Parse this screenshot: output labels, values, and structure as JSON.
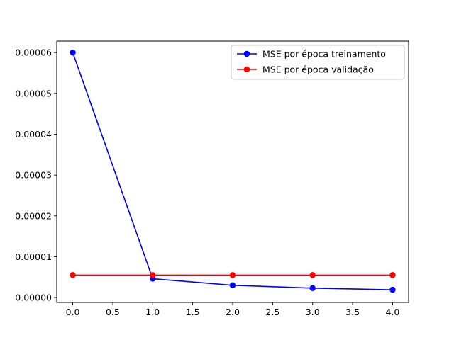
{
  "chart_data": {
    "type": "line",
    "title": "",
    "xlabel": "",
    "ylabel": "",
    "xlim": [
      -0.2,
      4.2
    ],
    "ylim": [
      -1.2e-06,
      6.28e-05
    ],
    "xticks": [
      0.0,
      0.5,
      1.0,
      1.5,
      2.0,
      2.5,
      3.0,
      3.5,
      4.0
    ],
    "xtick_labels": [
      "0.0",
      "0.5",
      "1.0",
      "1.5",
      "2.0",
      "2.5",
      "3.0",
      "3.5",
      "4.0"
    ],
    "yticks": [
      0.0,
      1e-05,
      2e-05,
      3e-05,
      4e-05,
      5e-05,
      6e-05
    ],
    "ytick_labels": [
      "0.00000",
      "0.00001",
      "0.00002",
      "0.00003",
      "0.00004",
      "0.00005",
      "0.00006"
    ],
    "grid": false,
    "legend_position": "top-right",
    "x": [
      0,
      1,
      2,
      3,
      4
    ],
    "series": [
      {
        "name": "MSE por época treinamento",
        "color": "#0000ff",
        "values": [
          6e-05,
          4.6e-06,
          3e-06,
          2.3e-06,
          1.9e-06
        ]
      },
      {
        "name": "MSE por época validação",
        "color": "#ff0000",
        "values": [
          5.5e-06,
          5.5e-06,
          5.5e-06,
          5.5e-06,
          5.5e-06
        ]
      }
    ]
  }
}
